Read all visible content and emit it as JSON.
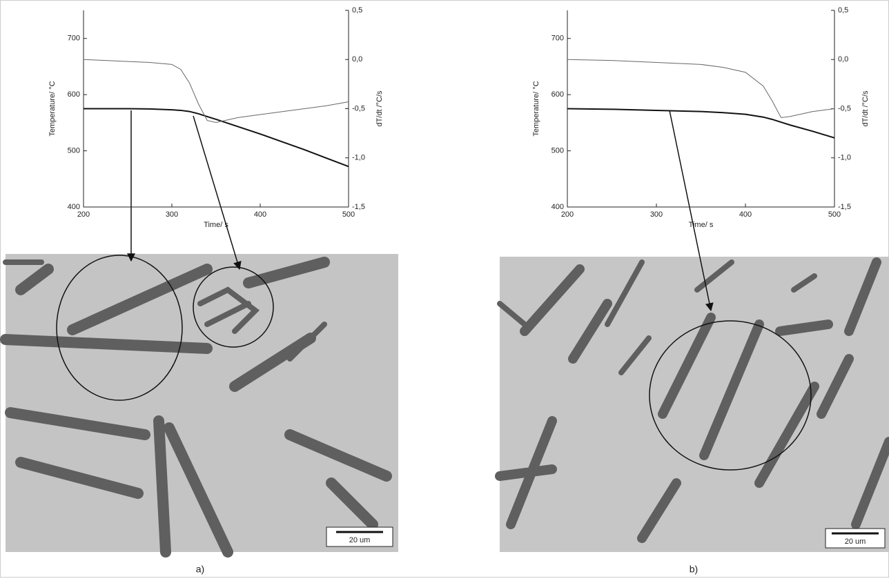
{
  "chart_data": [
    {
      "type": "line",
      "xlabel": "Time/ s",
      "ylabel": "Temperature/ °C",
      "y2label": "dT/dt /°C/s",
      "xlim": [
        200,
        500
      ],
      "xticks": [
        200,
        300,
        400,
        500
      ],
      "ylim": [
        400,
        750
      ],
      "yticks": [
        400,
        500,
        600,
        700
      ],
      "y2lim": [
        -1.5,
        0.5
      ],
      "y2ticks": [
        {
          "value": -1.5,
          "label": "-1,5"
        },
        {
          "value": -1.0,
          "label": "-1,0"
        },
        {
          "value": -0.5,
          "label": "-0,5"
        },
        {
          "value": 0,
          "label": "0,0"
        },
        {
          "value": 0.5,
          "label": "0,5"
        }
      ],
      "x": [
        200,
        225,
        250,
        275,
        300,
        310,
        320,
        330,
        340,
        350,
        375,
        400,
        425,
        450,
        475,
        500
      ],
      "series": [
        {
          "color": "#111111",
          "values": [
            575,
            575,
            575,
            574.5,
            573,
            572,
            570,
            566,
            561,
            556,
            543,
            530,
            516,
            502,
            487,
            472
          ]
        },
        {
          "color": "#666666",
          "axis": "y2",
          "values": [
            0.0,
            -0.01,
            -0.02,
            -0.03,
            -0.05,
            -0.1,
            -0.24,
            -0.45,
            -0.62,
            -0.64,
            -0.59,
            -0.56,
            -0.53,
            -0.5,
            -0.47,
            -0.43
          ]
        }
      ]
    },
    {
      "type": "line",
      "xlabel": "Time/ s",
      "ylabel": "Temperature/ °C",
      "y2label": "dT/dt /°C/s",
      "xlim": [
        200,
        500
      ],
      "xticks": [
        200,
        300,
        400,
        500
      ],
      "ylim": [
        400,
        750
      ],
      "yticks": [
        400,
        500,
        600,
        700
      ],
      "y2lim": [
        -1.5,
        0.5
      ],
      "y2ticks": [
        {
          "value": -1.5,
          "label": "-1,5"
        },
        {
          "value": -1.0,
          "label": "-1,0"
        },
        {
          "value": -0.5,
          "label": "-0,5"
        },
        {
          "value": 0,
          "label": "0,0"
        },
        {
          "value": 0.5,
          "label": "0,5"
        }
      ],
      "x": [
        200,
        250,
        300,
        350,
        375,
        400,
        420,
        430,
        440,
        450,
        475,
        500
      ],
      "series": [
        {
          "color": "#111111",
          "values": [
            575,
            574,
            572,
            570,
            568,
            565,
            560,
            556,
            551,
            546,
            535,
            523
          ]
        },
        {
          "color": "#666666",
          "axis": "y2",
          "values": [
            0.0,
            -0.01,
            -0.03,
            -0.05,
            -0.08,
            -0.13,
            -0.27,
            -0.42,
            -0.59,
            -0.58,
            -0.53,
            -0.5
          ]
        }
      ]
    }
  ],
  "panels": [
    {
      "scale_bar": "20 um",
      "label": "a)"
    },
    {
      "scale_bar": "20 um",
      "label": "b)"
    }
  ]
}
